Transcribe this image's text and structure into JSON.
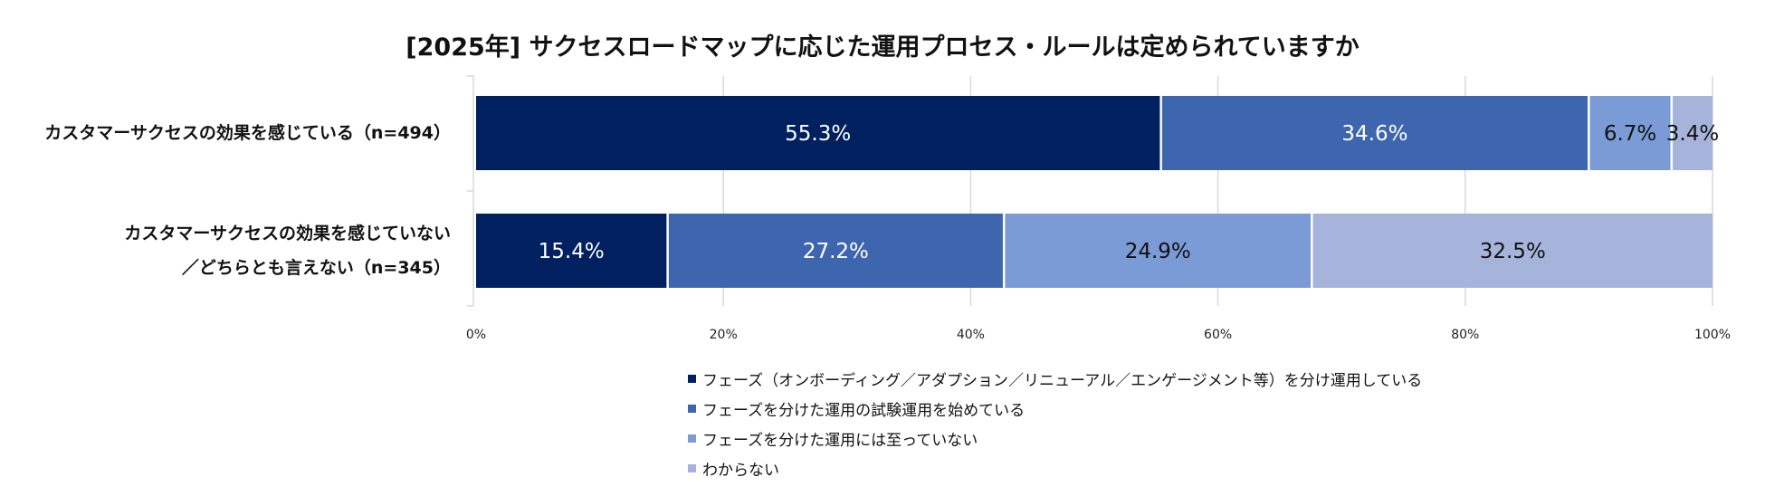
{
  "chart_data": {
    "type": "bar",
    "orientation": "horizontal",
    "stacked": true,
    "title": "[2025年] サクセスロードマップに応じた運用プロセス・ルールは定められていますか",
    "categories": [
      [
        "カスタマーサクセスの効果を感じている（n=494）"
      ],
      [
        "カスタマーサクセスの効果を感じていない",
        "／どちらとも言えない（n=345）"
      ]
    ],
    "series": [
      {
        "name": "フェーズ（オンボーディング／アダプション／リニューアル／エンゲージメント等）を分け運用している",
        "values": [
          55.3,
          15.4
        ],
        "labels": [
          "55.3%",
          "15.4%"
        ],
        "color": "#002060",
        "label_color": "#ffffff"
      },
      {
        "name": "フェーズを分けた運用の試験運用を始めている",
        "values": [
          34.6,
          27.2
        ],
        "labels": [
          "34.6%",
          "27.2%"
        ],
        "color": "#3E66AE",
        "label_color": "#ffffff"
      },
      {
        "name": "フェーズを分けた運用には至っていない",
        "values": [
          6.7,
          24.9
        ],
        "labels": [
          "6.7%",
          "24.9%"
        ],
        "color": "#7B9BD6",
        "label_color": "#111111"
      },
      {
        "name": "わからない",
        "values": [
          3.4,
          32.5
        ],
        "labels": [
          "3.4%",
          "32.5%"
        ],
        "color": "#A6B4DC",
        "label_color": "#111111"
      }
    ],
    "x_ticks": [
      "0%",
      "20%",
      "40%",
      "60%",
      "80%",
      "100%"
    ],
    "xlim": [
      0,
      100
    ],
    "grid": "vertical",
    "legend_position": "bottom"
  }
}
